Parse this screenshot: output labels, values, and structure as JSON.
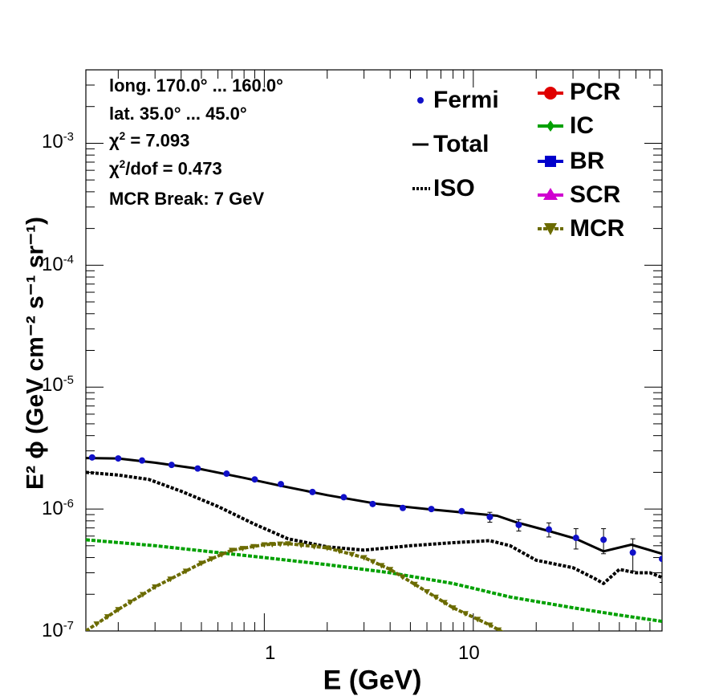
{
  "chart_data": {
    "type": "line",
    "xscale": "log",
    "yscale": "log",
    "xlim": [
      0.14,
      80
    ],
    "ylim": [
      1e-07,
      0.004
    ],
    "xlabel": "E (GeV)",
    "ylabel": "E² ϕ (GeV cm⁻² s⁻¹ sr⁻¹)",
    "xticks": [
      {
        "value": 1,
        "label": "1"
      },
      {
        "value": 10,
        "label": "10"
      }
    ],
    "yticks": [
      {
        "value": 1e-07,
        "base": "10",
        "exp": "-7"
      },
      {
        "value": 1e-06,
        "base": "10",
        "exp": "-6"
      },
      {
        "value": 1e-05,
        "base": "10",
        "exp": "-5"
      },
      {
        "value": 0.0001,
        "base": "10",
        "exp": "-4"
      },
      {
        "value": 0.001,
        "base": "10",
        "exp": "-3"
      }
    ],
    "info": {
      "longitude": "long. 170.0° ... 160.0°",
      "latitude": "lat. 35.0° ... 45.0°",
      "chi2_sym": "χ",
      "chi2_val": " = 7.093",
      "chi2dof_sym": "χ",
      "chi2dof_val": "/dof = 0.473",
      "break": "MCR Break:  7 GeV"
    },
    "legend_left": [
      {
        "key": "fermi",
        "label": "Fermi"
      },
      {
        "key": "total",
        "label": "Total"
      },
      {
        "key": "iso",
        "label": "ISO"
      }
    ],
    "legend_right": [
      {
        "key": "pcr",
        "label": "PCR",
        "color": "#e00000",
        "marker": "circle"
      },
      {
        "key": "ic",
        "label": "IC",
        "color": "#00a000",
        "marker": "diamond"
      },
      {
        "key": "br",
        "label": "BR",
        "color": "#0000cc",
        "marker": "square"
      },
      {
        "key": "scr",
        "label": "SCR",
        "color": "#d000d0",
        "marker": "triangle-up"
      },
      {
        "key": "mcr",
        "label": "MCR",
        "color": "#6b6b00",
        "marker": "triangle-down"
      }
    ],
    "colors": {
      "fermi": "#1010c8",
      "total": "#000000",
      "iso": "#000000",
      "ic": "#00a000",
      "mcr": "#6b6b00"
    },
    "fermi": {
      "x": [
        0.15,
        0.2,
        0.26,
        0.36,
        0.48,
        0.66,
        0.9,
        1.2,
        1.7,
        2.4,
        3.3,
        4.6,
        6.3,
        8.8,
        12,
        16.5,
        23,
        31,
        42,
        58,
        80
      ],
      "y": [
        2.65e-06,
        2.6e-06,
        2.5e-06,
        2.3e-06,
        2.15e-06,
        1.95e-06,
        1.75e-06,
        1.6e-06,
        1.38e-06,
        1.25e-06,
        1.1e-06,
        1.02e-06,
        1e-06,
        9.6e-07,
        8.6e-07,
        7.4e-07,
        6.8e-07,
        5.8e-07,
        5.6e-07,
        4.4e-07,
        3.9e-07
      ],
      "err": [
        0,
        0,
        0,
        0,
        0,
        0,
        0,
        0,
        0,
        0,
        0,
        0,
        0,
        3e-08,
        8e-08,
        8e-08,
        9e-08,
        1.1e-07,
        1.3e-07,
        1.3e-07,
        1.4e-07
      ]
    },
    "series": [
      {
        "key": "total",
        "style": "solid",
        "x": [
          0.14,
          0.2,
          0.3,
          0.5,
          0.8,
          1.2,
          2,
          3.5,
          6,
          10,
          13,
          16,
          23,
          31,
          42,
          57,
          80
        ],
        "y": [
          2.62e-06,
          2.6e-06,
          2.4e-06,
          2.12e-06,
          1.8e-06,
          1.55e-06,
          1.3e-06,
          1.1e-06,
          1e-06,
          9.2e-07,
          8.8e-07,
          7.8e-07,
          6.6e-07,
          5.7e-07,
          4.5e-07,
          5.1e-07,
          4.3e-07
        ]
      },
      {
        "key": "iso",
        "style": "dotted",
        "x": [
          0.14,
          0.2,
          0.28,
          0.4,
          0.6,
          0.9,
          1.3,
          2,
          3,
          5,
          8,
          12,
          15,
          20,
          30,
          38,
          42,
          50,
          60,
          70,
          80
        ],
        "y": [
          2e-06,
          1.9e-06,
          1.75e-06,
          1.4e-06,
          1.05e-06,
          7.5e-07,
          5.7e-07,
          4.9e-07,
          4.6e-07,
          5e-07,
          5.3e-07,
          5.5e-07,
          5e-07,
          3.8e-07,
          3.3e-07,
          2.7e-07,
          2.45e-07,
          3.2e-07,
          3e-07,
          3e-07,
          2.75e-07
        ]
      },
      {
        "key": "ic",
        "style": "dashed",
        "x": [
          0.14,
          0.3,
          0.6,
          1,
          2,
          4,
          8,
          15,
          30,
          50,
          80
        ],
        "y": [
          5.6e-07,
          5e-07,
          4.4e-07,
          4e-07,
          3.5e-07,
          3e-07,
          2.45e-07,
          1.9e-07,
          1.55e-07,
          1.35e-07,
          1.2e-07
        ]
      },
      {
        "key": "mcr",
        "style": "dashed",
        "marker": "triangle-down",
        "x": [
          0.14,
          0.2,
          0.3,
          0.5,
          0.7,
          1.0,
          1.3,
          2,
          3,
          4,
          6,
          8,
          12,
          16
        ],
        "y": [
          1e-07,
          1.5e-07,
          2.3e-07,
          3.6e-07,
          4.6e-07,
          5.1e-07,
          5.2e-07,
          4.8e-07,
          4e-07,
          3.2e-07,
          2.1e-07,
          1.55e-07,
          1.12e-07,
          8.5e-08
        ]
      }
    ]
  }
}
